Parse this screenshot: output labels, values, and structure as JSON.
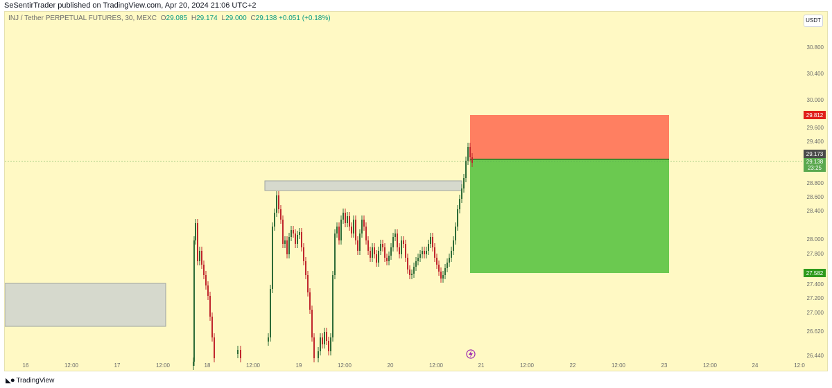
{
  "attribution": "SeSentirTrader published on TradingView.com, Apr 20, 2024 21:06 UTC+2",
  "legend": {
    "symbol": "INJ / Tether PERPETUAL FUTURES, 30, MEXC",
    "o_key": "O",
    "o": "29.085",
    "h_key": "H",
    "h": "29.174",
    "l_key": "L",
    "l": "29.000",
    "c_key": "C",
    "c": "29.138",
    "change": "+0.051 (+0.18%)"
  },
  "currency": "USDT",
  "price_axis": [
    "30.800",
    "30.400",
    "30.000",
    "29.600",
    "29.400",
    "28.800",
    "28.600",
    "28.400",
    "28.000",
    "27.800",
    "27.400",
    "27.200",
    "27.000",
    "26.620",
    "26.440"
  ],
  "time_axis": [
    "16",
    "12:00",
    "17",
    "12:00",
    "18",
    "12:00",
    "19",
    "12:00",
    "20",
    "12:00",
    "21",
    "12:00",
    "22",
    "12:00",
    "23",
    "12:00",
    "24",
    "12:0"
  ],
  "tags": {
    "stop": "29.812",
    "entry": "29.173",
    "last": "29.138",
    "countdown": "23:25",
    "target": "27.582"
  },
  "colors": {
    "stop_zone": "#ff7f61",
    "target_zone": "#6bc950",
    "stop_tag": "#e0201a",
    "entry_tag": "#4a4a4a",
    "last_tag": "#5aa84e",
    "target_tag": "#2e9a1c",
    "up": "#2e6b37",
    "down": "#c0262c"
  },
  "footer": {
    "brand": "TradingView"
  }
}
